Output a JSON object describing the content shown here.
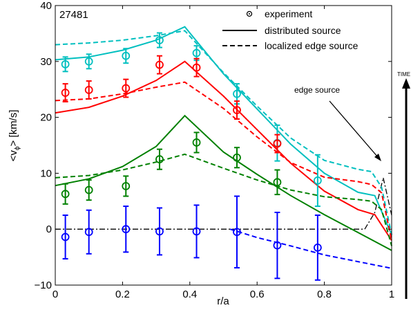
{
  "chart_data": {
    "type": "line",
    "shot": "27481",
    "xlabel": "r/a",
    "ylabel": "<v",
    "ylabel_sub": "ϕ",
    "ylabel_end": "> [km/s]",
    "xlim": [
      0,
      1
    ],
    "ylim": [
      -10,
      40
    ],
    "xticks": [
      {
        "v": 0,
        "label": "0"
      },
      {
        "v": 0.2,
        "label": "0.2"
      },
      {
        "v": 0.4,
        "label": "0.4"
      },
      {
        "v": 0.6,
        "label": "0.6"
      },
      {
        "v": 0.8,
        "label": "0.8"
      },
      {
        "v": 1,
        "label": "1"
      }
    ],
    "yticks": [
      {
        "v": -10,
        "label": "−10"
      },
      {
        "v": 0,
        "label": "0"
      },
      {
        "v": 10,
        "label": "10"
      },
      {
        "v": 20,
        "label": "20"
      },
      {
        "v": 30,
        "label": "30"
      },
      {
        "v": 40,
        "label": "40"
      }
    ],
    "legend": {
      "placement": "top-right",
      "entries": [
        {
          "label": "experiment",
          "style": "marker"
        },
        {
          "label": "distributed source",
          "style": "solid"
        },
        {
          "label": "localized edge source",
          "style": "dashed"
        }
      ]
    },
    "annotation": {
      "text": "edge source",
      "arrow_to": [
        0.98,
        9
      ]
    },
    "time_label": "TIME",
    "series": [
      {
        "color": "#00bfbf",
        "experiment": [
          {
            "x": 0.03,
            "y": 29.5,
            "err": 1.3
          },
          {
            "x": 0.1,
            "y": 30.0,
            "err": 1.3
          },
          {
            "x": 0.21,
            "y": 31.0,
            "err": 1.3
          },
          {
            "x": 0.31,
            "y": 33.8,
            "err": 1.3
          },
          {
            "x": 0.42,
            "y": 31.5,
            "err": 1.3
          },
          {
            "x": 0.54,
            "y": 24.2,
            "err": 1.8
          },
          {
            "x": 0.66,
            "y": 15.4,
            "err": 3.2
          },
          {
            "x": 0.78,
            "y": 8.7,
            "err": 4.6
          }
        ],
        "distributed": [
          [
            0,
            30.3
          ],
          [
            0.1,
            30.8
          ],
          [
            0.2,
            32.0
          ],
          [
            0.3,
            33.8
          ],
          [
            0.385,
            36.2
          ],
          [
            0.5,
            27.8
          ],
          [
            0.6,
            21.5
          ],
          [
            0.7,
            15.2
          ],
          [
            0.8,
            10.0
          ],
          [
            0.9,
            6.6
          ],
          [
            0.95,
            6.0
          ],
          [
            1,
            -1.0
          ]
        ],
        "edge": [
          [
            0,
            33.0
          ],
          [
            0.1,
            33.3
          ],
          [
            0.2,
            33.8
          ],
          [
            0.3,
            34.6
          ],
          [
            0.385,
            35.5
          ],
          [
            0.5,
            28.0
          ],
          [
            0.6,
            22.0
          ],
          [
            0.7,
            16.3
          ],
          [
            0.8,
            12.3
          ],
          [
            0.9,
            10.7
          ],
          [
            0.94,
            10.3
          ],
          [
            0.97,
            7.5
          ],
          [
            1,
            -1.0
          ]
        ]
      },
      {
        "color": "#ff0000",
        "experiment": [
          {
            "x": 0.03,
            "y": 24.4,
            "err": 1.6
          },
          {
            "x": 0.1,
            "y": 24.9,
            "err": 1.6
          },
          {
            "x": 0.21,
            "y": 25.2,
            "err": 1.6
          },
          {
            "x": 0.31,
            "y": 29.4,
            "err": 1.6
          },
          {
            "x": 0.42,
            "y": 28.9,
            "err": 1.6
          },
          {
            "x": 0.54,
            "y": 21.3,
            "err": 1.6
          },
          {
            "x": 0.66,
            "y": 15.3,
            "err": 1.6
          }
        ],
        "distributed": [
          [
            0,
            20.8
          ],
          [
            0.1,
            21.8
          ],
          [
            0.2,
            23.8
          ],
          [
            0.3,
            26.6
          ],
          [
            0.385,
            30.0
          ],
          [
            0.5,
            23.8
          ],
          [
            0.6,
            17.8
          ],
          [
            0.7,
            11.8
          ],
          [
            0.8,
            6.8
          ],
          [
            0.9,
            3.5
          ],
          [
            0.95,
            2.6
          ],
          [
            1,
            -2.0
          ]
        ],
        "edge": [
          [
            0,
            23.0
          ],
          [
            0.1,
            23.3
          ],
          [
            0.2,
            24.2
          ],
          [
            0.3,
            25.4
          ],
          [
            0.385,
            26.3
          ],
          [
            0.5,
            21.6
          ],
          [
            0.6,
            16.5
          ],
          [
            0.7,
            11.9
          ],
          [
            0.8,
            9.3
          ],
          [
            0.9,
            8.5
          ],
          [
            0.94,
            8.0
          ],
          [
            0.97,
            6.5
          ],
          [
            1,
            -2.0
          ]
        ]
      },
      {
        "color": "#008000",
        "experiment": [
          {
            "x": 0.03,
            "y": 6.3,
            "err": 1.8
          },
          {
            "x": 0.1,
            "y": 7.0,
            "err": 1.8
          },
          {
            "x": 0.21,
            "y": 7.7,
            "err": 1.8
          },
          {
            "x": 0.31,
            "y": 12.5,
            "err": 1.8
          },
          {
            "x": 0.42,
            "y": 15.5,
            "err": 1.8
          },
          {
            "x": 0.54,
            "y": 12.8,
            "err": 1.8
          },
          {
            "x": 0.66,
            "y": 8.4,
            "err": 2.2
          }
        ],
        "distributed": [
          [
            0,
            7.8
          ],
          [
            0.1,
            9.0
          ],
          [
            0.2,
            11.2
          ],
          [
            0.3,
            14.8
          ],
          [
            0.385,
            20.3
          ],
          [
            0.5,
            13.8
          ],
          [
            0.6,
            9.8
          ],
          [
            0.7,
            6.0
          ],
          [
            0.8,
            2.6
          ],
          [
            0.9,
            -0.6
          ],
          [
            1,
            -3.8
          ]
        ],
        "edge": [
          [
            0,
            9.2
          ],
          [
            0.1,
            9.6
          ],
          [
            0.2,
            10.6
          ],
          [
            0.3,
            12.0
          ],
          [
            0.385,
            13.4
          ],
          [
            0.5,
            10.9
          ],
          [
            0.6,
            8.8
          ],
          [
            0.7,
            7.0
          ],
          [
            0.8,
            5.8
          ],
          [
            0.9,
            5.3
          ],
          [
            0.94,
            5.0
          ],
          [
            0.97,
            3.5
          ],
          [
            1,
            -3.0
          ]
        ]
      },
      {
        "color": "#0000ff",
        "experiment": [
          {
            "x": 0.03,
            "y": -1.4,
            "err": 3.9
          },
          {
            "x": 0.1,
            "y": -0.5,
            "err": 3.9
          },
          {
            "x": 0.21,
            "y": 0.0,
            "err": 4.1
          },
          {
            "x": 0.31,
            "y": -0.4,
            "err": 4.2
          },
          {
            "x": 0.42,
            "y": -0.4,
            "err": 4.7
          },
          {
            "x": 0.54,
            "y": -0.5,
            "err": 6.4
          },
          {
            "x": 0.66,
            "y": -2.9,
            "err": 5.9
          },
          {
            "x": 0.78,
            "y": -3.3,
            "err": 5.8
          }
        ],
        "distributed": [],
        "edge": [
          [
            0.52,
            0
          ],
          [
            0.6,
            -1.5
          ],
          [
            0.7,
            -3.0
          ],
          [
            0.8,
            -4.6
          ],
          [
            0.9,
            -5.8
          ],
          [
            1,
            -7.0
          ]
        ]
      }
    ],
    "edge_source_profile": {
      "color": "#000000",
      "points": [
        [
          0,
          0
        ],
        [
          0.92,
          0
        ],
        [
          0.95,
          3
        ],
        [
          0.975,
          9.2
        ],
        [
          1,
          2.5
        ]
      ]
    }
  }
}
